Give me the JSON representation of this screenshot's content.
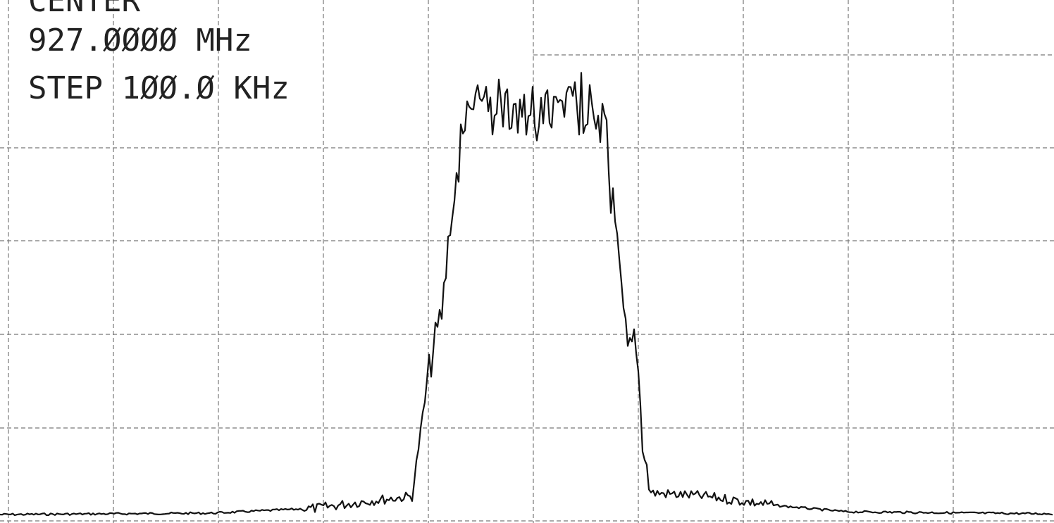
{
  "header": {
    "label": "CENTER",
    "frequency": "927.ØØØØ MHz",
    "step": "STEP 1ØØ.Ø KHz"
  }
}
